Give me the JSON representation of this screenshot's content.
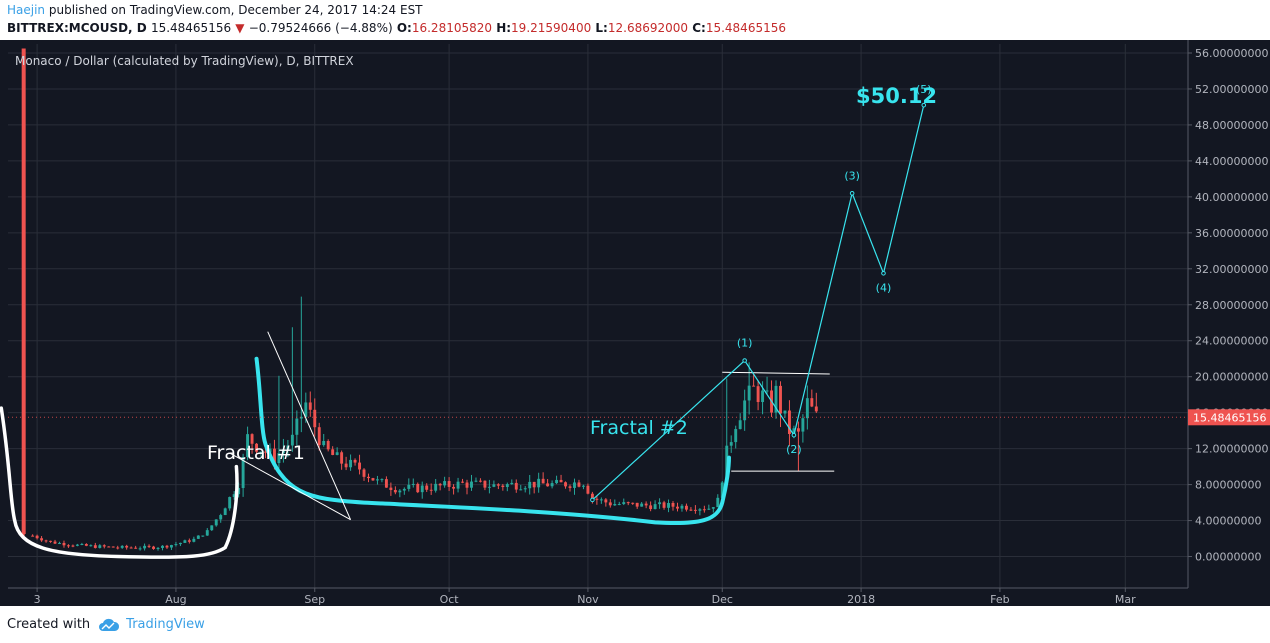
{
  "header": {
    "user": "Haejin",
    "published": "published on TradingView.com, December 24, 2017 14:24 EST",
    "symbol": "BITTREX:MCOUSD, D",
    "last": "15.48465156",
    "arrow": "▼",
    "change": "−0.79524666 (−4.88%)",
    "o_label": "O:",
    "o_value": "16.28105820",
    "h_label": "H:",
    "h_value": "19.21590400",
    "l_label": "L:",
    "l_value": "12.68692000",
    "c_label": "C:",
    "c_value": "15.48465156"
  },
  "footer": {
    "created": "Created with",
    "brand": "TradingView"
  },
  "chart_data": {
    "type": "candlestick",
    "title": "Monaco / Dollar (calculated by TradingView), D, BITTREX",
    "y_ticks": [
      "0.00000000",
      "4.00000000",
      "8.00000000",
      "12.00000000",
      "16.00000000",
      "20.00000000",
      "24.00000000",
      "28.00000000",
      "32.00000000",
      "36.00000000",
      "40.00000000",
      "44.00000000",
      "48.00000000",
      "52.00000000",
      "56.00000000"
    ],
    "y_tick_values": [
      0,
      4,
      8,
      12,
      16,
      20,
      24,
      28,
      32,
      36,
      40,
      44,
      48,
      52,
      56
    ],
    "ylim": [
      -3.5,
      57
    ],
    "x_ticks": [
      "3",
      "Aug",
      "Sep",
      "Oct",
      "Nov",
      "Dec",
      "2018",
      "Feb",
      "Mar"
    ],
    "x_tick_days": [
      2,
      33,
      64,
      94,
      125,
      155,
      186,
      217,
      245
    ],
    "xlim": [
      -4.5,
      259
    ],
    "last_price_label": "15.48465156",
    "last_price": 15.48465156,
    "colors": {
      "background": "#131722",
      "grid": "#2a2e39",
      "up": "#26a69a",
      "down": "#ef5350",
      "annotation": "#38e4ee",
      "accent_price": "#ef5350"
    },
    "price_path": {
      "days": [
        -1,
        0,
        5,
        12,
        20,
        27,
        30,
        33,
        37,
        40,
        43,
        47,
        49,
        52,
        55,
        59,
        62,
        66,
        70,
        74,
        78,
        83,
        90,
        97,
        104,
        112,
        118,
        124,
        126,
        130,
        137,
        145,
        152,
        154,
        156,
        158,
        160,
        162,
        164,
        166,
        167,
        168,
        170,
        172,
        174,
        176
      ],
      "values": [
        2.8,
        2.5,
        1.6,
        1.2,
        1.0,
        1.0,
        1.1,
        1.4,
        1.9,
        2.8,
        4.8,
        8.2,
        13.2,
        12.0,
        11.0,
        13.0,
        17.0,
        12.0,
        10.5,
        9.8,
        8.3,
        7.5,
        7.7,
        8.1,
        7.9,
        8.1,
        8.0,
        8.3,
        6.5,
        5.9,
        5.7,
        5.6,
        5.4,
        6.2,
        11.5,
        15.0,
        17.2,
        18.5,
        17.8,
        16.8,
        18.2,
        16.5,
        14.0,
        13.5,
        17.0,
        15.5
      ]
    },
    "annotations": {
      "fractal1_label": "Fractal #1",
      "fractal2_label": "Fractal #2",
      "target_label": "$50.12",
      "wave_labels": [
        "(1)",
        "(2)",
        "(3)",
        "(4)",
        "(5)"
      ],
      "wave_points": [
        [
          126,
          6.3
        ],
        [
          160,
          21.8
        ],
        [
          171,
          13.5
        ],
        [
          184,
          40.4
        ],
        [
          191,
          31.5
        ],
        [
          200,
          50.2
        ]
      ],
      "resistance_value": 20.5,
      "support_value": 9.5
    }
  }
}
